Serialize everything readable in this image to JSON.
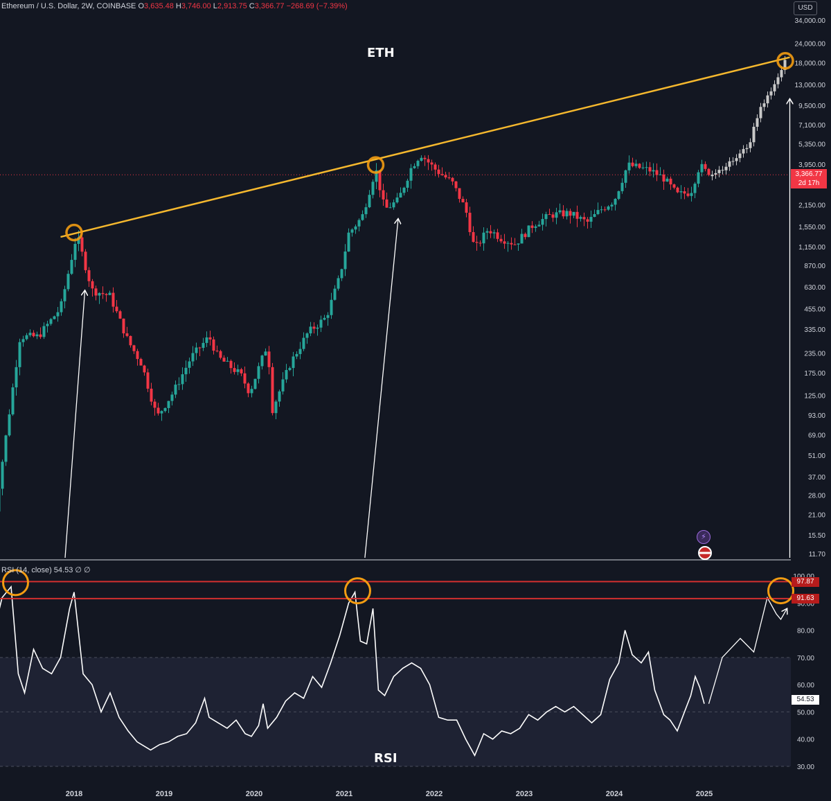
{
  "header": {
    "symbol": "Ethereum / U.S. Dollar, 2W, COINBASE",
    "o_label": "O",
    "o_val": "3,635.48",
    "h_label": "H",
    "h_val": "3,746.00",
    "l_label": "L",
    "l_val": "2,913.75",
    "c_label": "C",
    "c_val": "3,366.77",
    "change": "−268.69 (−7.39%)",
    "currency": "USD"
  },
  "labels": {
    "eth": "ETH",
    "rsi": "RSI"
  },
  "price_tag": {
    "price": "3,366.77",
    "countdown": "2d 17h"
  },
  "rsi_header": "RSI (14, close)  54.53  ∅  ∅",
  "rsi_tags": {
    "upper": "97.87",
    "lower": "91.63",
    "current": "54.53"
  },
  "colors": {
    "up": "#26a69a",
    "down": "#f23645",
    "trendline": "#f5b82e",
    "circle": "#f39c12",
    "projection": "#c8c8c8",
    "rsi_line": "#ffffff",
    "rsi_band": "#1e2233",
    "level_line": "#d32f2f"
  },
  "icons": [
    "lightning-icon",
    "us-flag-icon"
  ],
  "chart_data": [
    {
      "type": "candlestick",
      "title": "ETH",
      "scale": "log",
      "y_ticks": [
        34000,
        24000,
        18000,
        13000,
        9500,
        7100,
        5350,
        3950,
        2150,
        1550,
        1150,
        870,
        630,
        455,
        335,
        235,
        175,
        125,
        93,
        69,
        51,
        37,
        28,
        21,
        15.5,
        11.7
      ],
      "y_tick_labels": [
        "34,000.00",
        "24,000.00",
        "18,000.00",
        "13,000.00",
        "9,500.00",
        "7,100.00",
        "5,350.00",
        "3,950.00",
        "2,150.00",
        "1,550.00",
        "1,150.00",
        "870.00",
        "630.00",
        "455.00",
        "335.00",
        "235.00",
        "175.00",
        "125.00",
        "93.00",
        "69.00",
        "51.00",
        "37.00",
        "28.00",
        "21.00",
        "15.50",
        "11.70"
      ],
      "x_ticks": [
        "2018",
        "2019",
        "2020",
        "2021",
        "2022",
        "2023",
        "2024",
        "2025"
      ],
      "x_tick_years": [
        2018,
        2019,
        2020,
        2021,
        2022,
        2023,
        2024,
        2025
      ],
      "price_path": [
        [
          2017.05,
          11
        ],
        [
          2017.2,
          45
        ],
        [
          2017.4,
          300
        ],
        [
          2017.6,
          300
        ],
        [
          2017.85,
          460
        ],
        [
          2018.03,
          1380
        ],
        [
          2018.2,
          600
        ],
        [
          2018.4,
          550
        ],
        [
          2018.6,
          280
        ],
        [
          2018.75,
          200
        ],
        [
          2018.92,
          90
        ],
        [
          2019.1,
          130
        ],
        [
          2019.3,
          220
        ],
        [
          2019.5,
          300
        ],
        [
          2019.6,
          220
        ],
        [
          2019.85,
          170
        ],
        [
          2019.95,
          130
        ],
        [
          2020.15,
          270
        ],
        [
          2020.2,
          100
        ],
        [
          2020.4,
          200
        ],
        [
          2020.6,
          320
        ],
        [
          2020.8,
          400
        ],
        [
          2020.95,
          730
        ],
        [
          2021.05,
          1400
        ],
        [
          2021.2,
          1800
        ],
        [
          2021.35,
          3700
        ],
        [
          2021.45,
          2000
        ],
        [
          2021.6,
          2300
        ],
        [
          2021.75,
          3800
        ],
        [
          2021.85,
          4600
        ],
        [
          2022.0,
          3700
        ],
        [
          2022.2,
          3000
        ],
        [
          2022.35,
          2000
        ],
        [
          2022.45,
          1100
        ],
        [
          2022.6,
          1500
        ],
        [
          2022.75,
          1300
        ],
        [
          2022.9,
          1200
        ],
        [
          2023.1,
          1600
        ],
        [
          2023.3,
          1850
        ],
        [
          2023.5,
          1900
        ],
        [
          2023.7,
          1650
        ],
        [
          2023.85,
          2000
        ],
        [
          2024.0,
          2300
        ],
        [
          2024.15,
          3900
        ],
        [
          2024.4,
          3600
        ],
        [
          2024.55,
          3200
        ],
        [
          2024.7,
          2500
        ],
        [
          2024.85,
          2600
        ],
        [
          2024.95,
          3900
        ],
        [
          2025.05,
          3366.77
        ]
      ],
      "projection_path": [
        [
          2025.05,
          3300
        ],
        [
          2025.2,
          3700
        ],
        [
          2025.35,
          4300
        ],
        [
          2025.5,
          5300
        ],
        [
          2025.6,
          8500
        ],
        [
          2025.7,
          11000
        ],
        [
          2025.8,
          13500
        ],
        [
          2025.9,
          18500
        ]
      ],
      "trendline": [
        [
          2017.85,
          1330
        ],
        [
          2025.95,
          19500
        ]
      ],
      "circles": [
        [
          2018.0,
          1420
        ],
        [
          2021.35,
          3900
        ],
        [
          2025.9,
          18500
        ]
      ],
      "arrows": [
        {
          "from": [
            2017.9,
            11
          ],
          "to": [
            2018.12,
            600
          ]
        },
        {
          "from": [
            2021.23,
            11
          ],
          "to": [
            2021.6,
            1750
          ]
        },
        {
          "from": [
            2025.95,
            11
          ],
          "to": [
            2025.95,
            10500
          ]
        }
      ],
      "last_price": 3366.77
    },
    {
      "type": "line",
      "title": "RSI",
      "y_ticks": [
        100,
        90,
        80,
        70,
        60,
        50,
        40,
        30
      ],
      "y_tick_labels": [
        "100.00",
        "90.00",
        "80.00",
        "70.00",
        "60.00",
        "50.00",
        "40.00",
        "30.00"
      ],
      "band": [
        30,
        70
      ],
      "levels": [
        97.87,
        91.63
      ],
      "series": [
        {
          "points": [
            [
              2017.0,
              86
            ],
            [
              2017.1,
              78
            ],
            [
              2017.2,
              92
            ],
            [
              2017.3,
              96
            ],
            [
              2017.38,
              64
            ],
            [
              2017.45,
              57
            ],
            [
              2017.55,
              73
            ],
            [
              2017.65,
              66
            ],
            [
              2017.75,
              64
            ],
            [
              2017.85,
              70
            ],
            [
              2017.95,
              88
            ],
            [
              2018.0,
              94
            ],
            [
              2018.1,
              64
            ],
            [
              2018.2,
              60
            ],
            [
              2018.3,
              50
            ],
            [
              2018.4,
              57
            ],
            [
              2018.5,
              48
            ],
            [
              2018.6,
              43
            ],
            [
              2018.7,
              39
            ],
            [
              2018.85,
              36
            ],
            [
              2018.95,
              38
            ],
            [
              2019.05,
              39
            ],
            [
              2019.15,
              41
            ],
            [
              2019.25,
              42
            ],
            [
              2019.35,
              46
            ],
            [
              2019.45,
              55
            ],
            [
              2019.5,
              48
            ],
            [
              2019.6,
              46
            ],
            [
              2019.7,
              44
            ],
            [
              2019.8,
              47
            ],
            [
              2019.9,
              42
            ],
            [
              2019.97,
              41
            ],
            [
              2020.05,
              45
            ],
            [
              2020.1,
              53
            ],
            [
              2020.15,
              44
            ],
            [
              2020.25,
              48
            ],
            [
              2020.35,
              54
            ],
            [
              2020.45,
              57
            ],
            [
              2020.55,
              55
            ],
            [
              2020.65,
              63
            ],
            [
              2020.75,
              59
            ],
            [
              2020.85,
              68
            ],
            [
              2020.95,
              78
            ],
            [
              2021.05,
              90
            ],
            [
              2021.12,
              94
            ],
            [
              2021.18,
              76
            ],
            [
              2021.25,
              75
            ],
            [
              2021.32,
              88
            ],
            [
              2021.38,
              58
            ],
            [
              2021.45,
              56
            ],
            [
              2021.55,
              63
            ],
            [
              2021.65,
              66
            ],
            [
              2021.75,
              68
            ],
            [
              2021.85,
              66
            ],
            [
              2021.95,
              60
            ],
            [
              2022.05,
              48
            ],
            [
              2022.15,
              47
            ],
            [
              2022.25,
              47
            ],
            [
              2022.35,
              40
            ],
            [
              2022.45,
              34
            ],
            [
              2022.55,
              42
            ],
            [
              2022.65,
              40
            ],
            [
              2022.75,
              43
            ],
            [
              2022.85,
              42
            ],
            [
              2022.95,
              44
            ],
            [
              2023.05,
              49
            ],
            [
              2023.15,
              47
            ],
            [
              2023.25,
              50
            ],
            [
              2023.35,
              52
            ],
            [
              2023.45,
              50
            ],
            [
              2023.55,
              52
            ],
            [
              2023.65,
              49
            ],
            [
              2023.75,
              46
            ],
            [
              2023.85,
              49
            ],
            [
              2023.95,
              62
            ],
            [
              2024.05,
              68
            ],
            [
              2024.12,
              80
            ],
            [
              2024.2,
              71
            ],
            [
              2024.3,
              68
            ],
            [
              2024.38,
              72
            ],
            [
              2024.45,
              58
            ],
            [
              2024.55,
              49
            ],
            [
              2024.62,
              47
            ],
            [
              2024.7,
              43
            ],
            [
              2024.78,
              50
            ],
            [
              2024.85,
              56
            ],
            [
              2024.9,
              63
            ],
            [
              2024.95,
              59
            ],
            [
              2025.0,
              53
            ]
          ],
          "projection": [
            [
              2025.05,
              53
            ],
            [
              2025.2,
              70
            ],
            [
              2025.4,
              77
            ],
            [
              2025.55,
              72
            ],
            [
              2025.7,
              92
            ],
            [
              2025.8,
              86
            ],
            [
              2025.85,
              84
            ],
            [
              2025.92,
              88
            ]
          ]
        }
      ],
      "last_value": 54.53
    }
  ]
}
